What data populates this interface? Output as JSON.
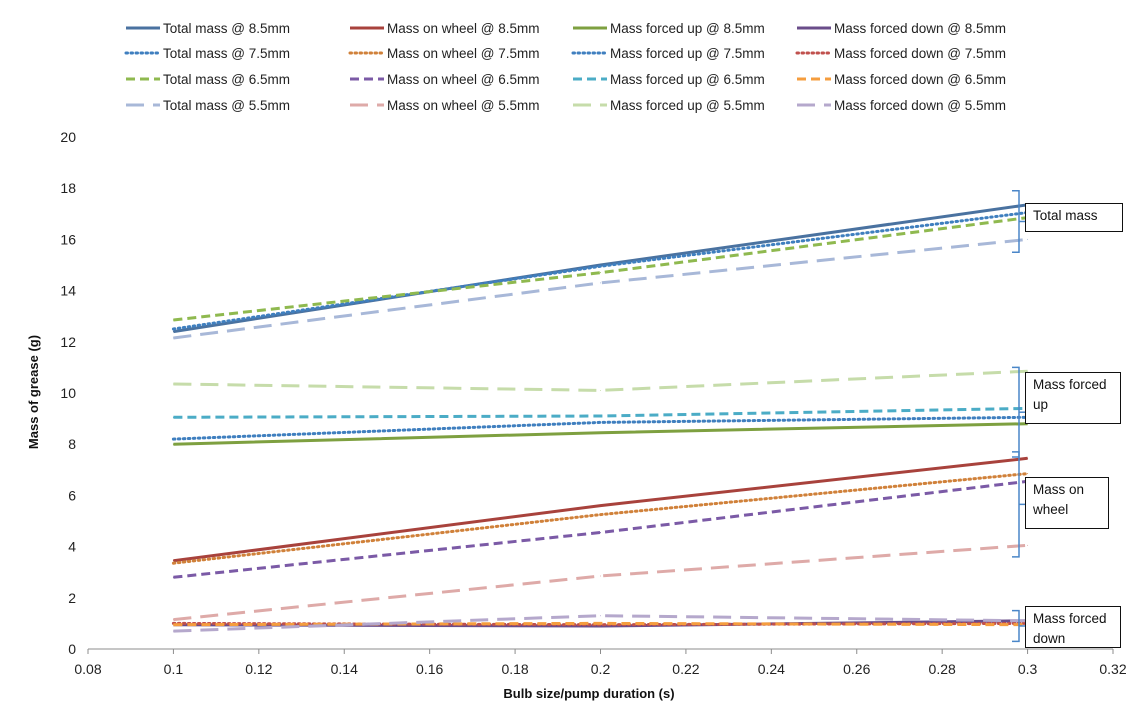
{
  "chart_data": {
    "type": "line",
    "title": "",
    "xlabel": "Bulb size/pump duration (s)",
    "ylabel": "Mass of grease (g)",
    "xlim": [
      0.08,
      0.32
    ],
    "ylim": [
      0,
      20
    ],
    "x_ticks": [
      "0.08",
      "0.1",
      "0.12",
      "0.14",
      "0.16",
      "0.18",
      "0.2",
      "0.22",
      "0.24",
      "0.26",
      "0.28",
      "0.3",
      "0.32"
    ],
    "y_ticks": [
      "0",
      "2",
      "4",
      "6",
      "8",
      "10",
      "12",
      "14",
      "16",
      "18",
      "20"
    ],
    "grid": false,
    "legend_position": "top",
    "x": [
      0.1,
      0.2,
      0.3
    ],
    "series": [
      {
        "name": "Total mass @ 8.5mm",
        "values": [
          12.4,
          15.0,
          17.35
        ],
        "color": "#4a72a0",
        "dash": "solid"
      },
      {
        "name": "Mass on wheel @ 8.5mm",
        "values": [
          3.45,
          5.6,
          7.45
        ],
        "color": "#a8423c",
        "dash": "solid"
      },
      {
        "name": "Mass forced up @ 8.5mm",
        "values": [
          8.0,
          8.45,
          8.8
        ],
        "color": "#7ea040",
        "dash": "solid"
      },
      {
        "name": "Mass forced down @ 8.5mm",
        "values": [
          0.95,
          0.9,
          1.1
        ],
        "color": "#6a4d8a",
        "dash": "solid"
      },
      {
        "name": "Total mass @ 7.5mm",
        "values": [
          12.5,
          14.95,
          17.05
        ],
        "color": "#3f7fbf",
        "dash": "dotted"
      },
      {
        "name": "Mass on wheel @ 7.5mm",
        "values": [
          3.35,
          5.25,
          6.85
        ],
        "color": "#d0813a",
        "dash": "dotted"
      },
      {
        "name": "Mass forced up @ 7.5mm",
        "values": [
          8.2,
          8.85,
          9.05
        ],
        "color": "#3f7fbf",
        "dash": "dotted"
      },
      {
        "name": "Mass forced down @ 7.5mm",
        "values": [
          1.0,
          0.95,
          1.0
        ],
        "color": "#c0504d",
        "dash": "dotted"
      },
      {
        "name": "Total mass @ 6.5mm",
        "values": [
          12.85,
          14.7,
          16.85
        ],
        "color": "#8fb94f",
        "dash": "dashed"
      },
      {
        "name": "Mass on wheel @ 6.5mm",
        "values": [
          2.8,
          4.55,
          6.55
        ],
        "color": "#7b5aa6",
        "dash": "dashed"
      },
      {
        "name": "Mass forced up @ 6.5mm",
        "values": [
          9.05,
          9.1,
          9.4
        ],
        "color": "#4bacc6",
        "dash": "dashed"
      },
      {
        "name": "Mass forced down @ 6.5mm",
        "values": [
          0.95,
          1.0,
          0.95
        ],
        "color": "#f59d3e",
        "dash": "dashed"
      },
      {
        "name": "Total mass @ 5.5mm",
        "values": [
          12.15,
          14.3,
          16.0
        ],
        "color": "#a8b8d8",
        "dash": "longdash"
      },
      {
        "name": "Mass on wheel @ 5.5mm",
        "values": [
          1.15,
          2.85,
          4.05
        ],
        "color": "#deaaa8",
        "dash": "longdash"
      },
      {
        "name": "Mass forced up @ 5.5mm",
        "values": [
          10.35,
          10.1,
          10.85
        ],
        "color": "#c6dcaa",
        "dash": "longdash"
      },
      {
        "name": "Mass forced down @ 5.5mm",
        "values": [
          0.7,
          1.3,
          1.1
        ],
        "color": "#b5a8cc",
        "dash": "longdash"
      }
    ],
    "annotations": [
      {
        "text": "Total mass",
        "y_range": [
          15.5,
          17.9
        ]
      },
      {
        "text": "Mass forced\nup",
        "y_range": [
          7.5,
          11.0
        ]
      },
      {
        "text": "Mass on\nwheel",
        "y_range": [
          3.6,
          7.7
        ]
      },
      {
        "text": "Mass forced\ndown",
        "y_range": [
          0.3,
          1.5
        ]
      }
    ]
  }
}
